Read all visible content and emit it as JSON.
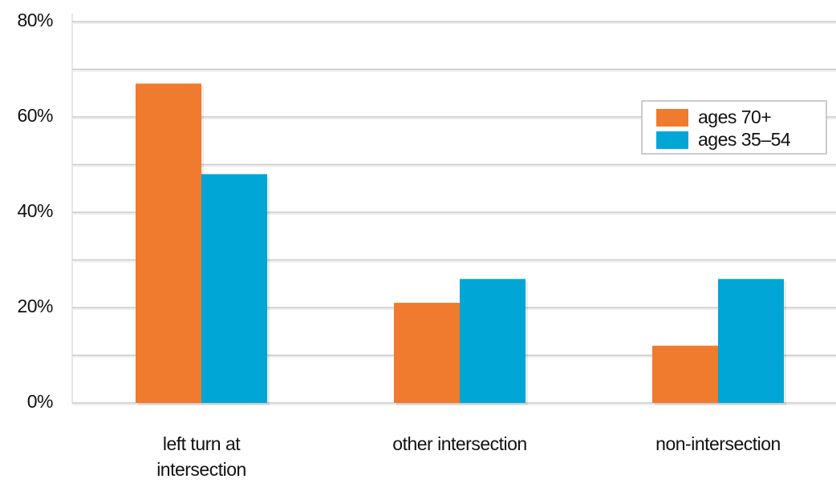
{
  "chart_data": {
    "type": "bar",
    "categories": [
      "left turn at intersection",
      "other intersection",
      "non-intersection"
    ],
    "series": [
      {
        "name": "ages 70+",
        "color": "#f07a2d",
        "values": [
          67,
          21,
          12
        ]
      },
      {
        "name": "ages 35–54",
        "color": "#00a6d6",
        "values": [
          48,
          26,
          26
        ]
      }
    ],
    "ylim": [
      0,
      80
    ],
    "yticks": [
      {
        "value": 0,
        "label": "0%"
      },
      {
        "value": 20,
        "label": "20%"
      },
      {
        "value": 40,
        "label": "40%"
      },
      {
        "value": 60,
        "label": "60%"
      },
      {
        "value": 80,
        "label": "80%"
      }
    ],
    "minor_yticks": [
      10,
      30,
      50,
      70
    ],
    "grid": true,
    "legend_position": "upper right"
  }
}
